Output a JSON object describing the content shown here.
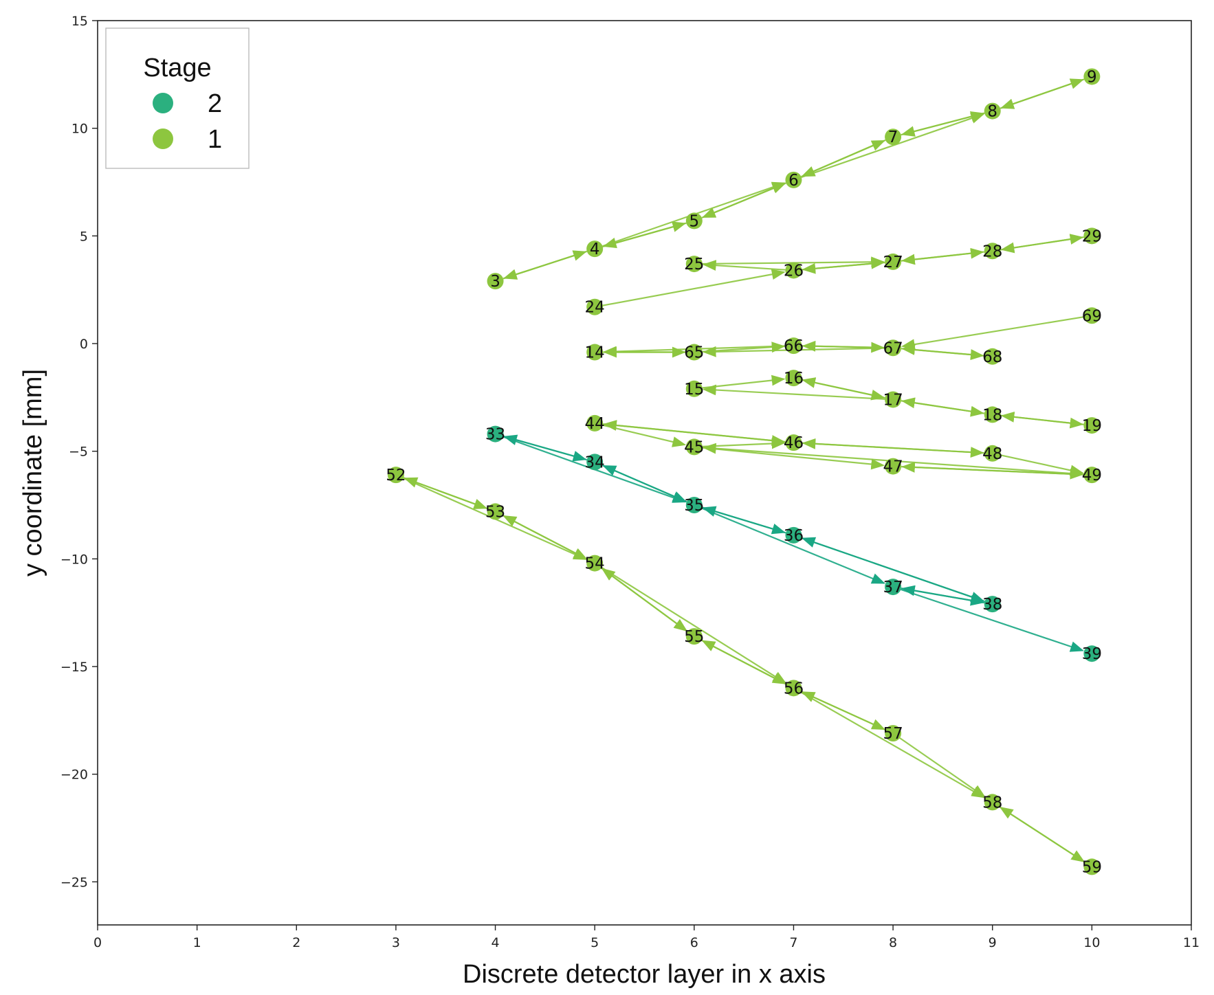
{
  "chart_data": {
    "type": "scatter",
    "xlabel": "Discrete detector layer in x axis",
    "ylabel": "y coordinate [mm]",
    "xlim": [
      0,
      11
    ],
    "ylim": [
      -27,
      15
    ],
    "x_ticks": [
      "0",
      "1",
      "2",
      "3",
      "4",
      "5",
      "6",
      "7",
      "8",
      "9",
      "10",
      "11"
    ],
    "y_ticks": [
      {
        "value": 15,
        "label": "15"
      },
      {
        "value": 10,
        "label": "10"
      },
      {
        "value": 5,
        "label": "5"
      },
      {
        "value": 0,
        "label": "0"
      },
      {
        "value": -5,
        "label": "−5"
      },
      {
        "value": -10,
        "label": "−10"
      },
      {
        "value": -15,
        "label": "−15"
      },
      {
        "value": -20,
        "label": "−20"
      },
      {
        "value": -25,
        "label": "−25"
      }
    ],
    "grid": false,
    "legend": {
      "title": "Stage",
      "placement": "top-left",
      "entries": [
        {
          "label": "2",
          "color": "#2bb07f"
        },
        {
          "label": "1",
          "color": "#8dc63f"
        }
      ]
    },
    "stage_colors": {
      "1": "#8dc63f",
      "2": "#2bb07f"
    },
    "edge_colors": {
      "1": "#8dc63f",
      "2": "#1aa784"
    },
    "nodes": [
      {
        "id": "3",
        "x": 4,
        "y": 2.9,
        "stage": 1
      },
      {
        "id": "4",
        "x": 5,
        "y": 4.4,
        "stage": 1
      },
      {
        "id": "5",
        "x": 6,
        "y": 5.7,
        "stage": 1
      },
      {
        "id": "6",
        "x": 7,
        "y": 7.6,
        "stage": 1
      },
      {
        "id": "7",
        "x": 8,
        "y": 9.6,
        "stage": 1
      },
      {
        "id": "8",
        "x": 9,
        "y": 10.8,
        "stage": 1
      },
      {
        "id": "9",
        "x": 10,
        "y": 12.4,
        "stage": 1
      },
      {
        "id": "24",
        "x": 5,
        "y": 1.7,
        "stage": 1
      },
      {
        "id": "25",
        "x": 6,
        "y": 3.7,
        "stage": 1
      },
      {
        "id": "26",
        "x": 7,
        "y": 3.4,
        "stage": 1
      },
      {
        "id": "27",
        "x": 8,
        "y": 3.8,
        "stage": 1
      },
      {
        "id": "28",
        "x": 9,
        "y": 4.3,
        "stage": 1
      },
      {
        "id": "29",
        "x": 10,
        "y": 5.0,
        "stage": 1
      },
      {
        "id": "69",
        "x": 10,
        "y": 1.3,
        "stage": 1
      },
      {
        "id": "14",
        "x": 5,
        "y": -0.4,
        "stage": 1
      },
      {
        "id": "65",
        "x": 6,
        "y": -0.4,
        "stage": 1
      },
      {
        "id": "66",
        "x": 7,
        "y": -0.1,
        "stage": 1
      },
      {
        "id": "67",
        "x": 8,
        "y": -0.2,
        "stage": 1
      },
      {
        "id": "68",
        "x": 9,
        "y": -0.6,
        "stage": 1
      },
      {
        "id": "15",
        "x": 6,
        "y": -2.1,
        "stage": 1
      },
      {
        "id": "16",
        "x": 7,
        "y": -1.6,
        "stage": 1
      },
      {
        "id": "17",
        "x": 8,
        "y": -2.6,
        "stage": 1
      },
      {
        "id": "18",
        "x": 9,
        "y": -3.3,
        "stage": 1
      },
      {
        "id": "19",
        "x": 10,
        "y": -3.8,
        "stage": 1
      },
      {
        "id": "44",
        "x": 5,
        "y": -3.7,
        "stage": 1
      },
      {
        "id": "45",
        "x": 6,
        "y": -4.8,
        "stage": 1
      },
      {
        "id": "46",
        "x": 7,
        "y": -4.6,
        "stage": 1
      },
      {
        "id": "47",
        "x": 8,
        "y": -5.7,
        "stage": 1
      },
      {
        "id": "48",
        "x": 9,
        "y": -5.1,
        "stage": 1
      },
      {
        "id": "49",
        "x": 10,
        "y": -6.1,
        "stage": 1
      },
      {
        "id": "33",
        "x": 4,
        "y": -4.2,
        "stage": 2
      },
      {
        "id": "34",
        "x": 5,
        "y": -5.5,
        "stage": 2
      },
      {
        "id": "35",
        "x": 6,
        "y": -7.5,
        "stage": 2
      },
      {
        "id": "36",
        "x": 7,
        "y": -8.9,
        "stage": 2
      },
      {
        "id": "37",
        "x": 8,
        "y": -11.3,
        "stage": 2
      },
      {
        "id": "38",
        "x": 9,
        "y": -12.1,
        "stage": 2
      },
      {
        "id": "39",
        "x": 10,
        "y": -14.4,
        "stage": 2
      },
      {
        "id": "52",
        "x": 3,
        "y": -6.1,
        "stage": 1
      },
      {
        "id": "53",
        "x": 4,
        "y": -7.8,
        "stage": 1
      },
      {
        "id": "54",
        "x": 5,
        "y": -10.2,
        "stage": 1
      },
      {
        "id": "55",
        "x": 6,
        "y": -13.6,
        "stage": 1
      },
      {
        "id": "56",
        "x": 7,
        "y": -16.0,
        "stage": 1
      },
      {
        "id": "57",
        "x": 8,
        "y": -18.1,
        "stage": 1
      },
      {
        "id": "58",
        "x": 9,
        "y": -21.3,
        "stage": 1
      },
      {
        "id": "59",
        "x": 10,
        "y": -24.3,
        "stage": 1
      }
    ],
    "edges": [
      [
        "3",
        "4"
      ],
      [
        "4",
        "3"
      ],
      [
        "4",
        "5"
      ],
      [
        "5",
        "4"
      ],
      [
        "5",
        "6"
      ],
      [
        "6",
        "5"
      ],
      [
        "6",
        "7"
      ],
      [
        "7",
        "6"
      ],
      [
        "7",
        "8"
      ],
      [
        "8",
        "7"
      ],
      [
        "8",
        "9"
      ],
      [
        "9",
        "8"
      ],
      [
        "6",
        "8"
      ],
      [
        "4",
        "6"
      ],
      [
        "24",
        "26"
      ],
      [
        "26",
        "25"
      ],
      [
        "25",
        "27"
      ],
      [
        "26",
        "27"
      ],
      [
        "27",
        "26"
      ],
      [
        "27",
        "28"
      ],
      [
        "28",
        "27"
      ],
      [
        "28",
        "29"
      ],
      [
        "29",
        "28"
      ],
      [
        "69",
        "67"
      ],
      [
        "14",
        "65"
      ],
      [
        "65",
        "14"
      ],
      [
        "65",
        "66"
      ],
      [
        "66",
        "67"
      ],
      [
        "67",
        "66"
      ],
      [
        "67",
        "68"
      ],
      [
        "68",
        "67"
      ],
      [
        "67",
        "65"
      ],
      [
        "66",
        "14"
      ],
      [
        "15",
        "16"
      ],
      [
        "16",
        "17"
      ],
      [
        "17",
        "16"
      ],
      [
        "17",
        "18"
      ],
      [
        "18",
        "17"
      ],
      [
        "18",
        "19"
      ],
      [
        "19",
        "18"
      ],
      [
        "17",
        "15"
      ],
      [
        "44",
        "46"
      ],
      [
        "46",
        "44"
      ],
      [
        "45",
        "46"
      ],
      [
        "46",
        "48"
      ],
      [
        "48",
        "46"
      ],
      [
        "48",
        "49"
      ],
      [
        "49",
        "45"
      ],
      [
        "45",
        "47"
      ],
      [
        "47",
        "49"
      ],
      [
        "49",
        "47"
      ],
      [
        "44",
        "45"
      ],
      [
        "33",
        "34"
      ],
      [
        "34",
        "33"
      ],
      [
        "33",
        "35"
      ],
      [
        "34",
        "35"
      ],
      [
        "35",
        "34"
      ],
      [
        "35",
        "36"
      ],
      [
        "36",
        "35"
      ],
      [
        "35",
        "37"
      ],
      [
        "36",
        "38"
      ],
      [
        "37",
        "38"
      ],
      [
        "38",
        "37"
      ],
      [
        "37",
        "39"
      ],
      [
        "38",
        "36"
      ],
      [
        "52",
        "53"
      ],
      [
        "53",
        "52"
      ],
      [
        "53",
        "54"
      ],
      [
        "52",
        "54"
      ],
      [
        "54",
        "53"
      ],
      [
        "54",
        "55"
      ],
      [
        "55",
        "54"
      ],
      [
        "55",
        "56"
      ],
      [
        "56",
        "55"
      ],
      [
        "54",
        "56"
      ],
      [
        "56",
        "57"
      ],
      [
        "57",
        "56"
      ],
      [
        "56",
        "58"
      ],
      [
        "57",
        "58"
      ],
      [
        "58",
        "59"
      ],
      [
        "59",
        "58"
      ]
    ]
  }
}
